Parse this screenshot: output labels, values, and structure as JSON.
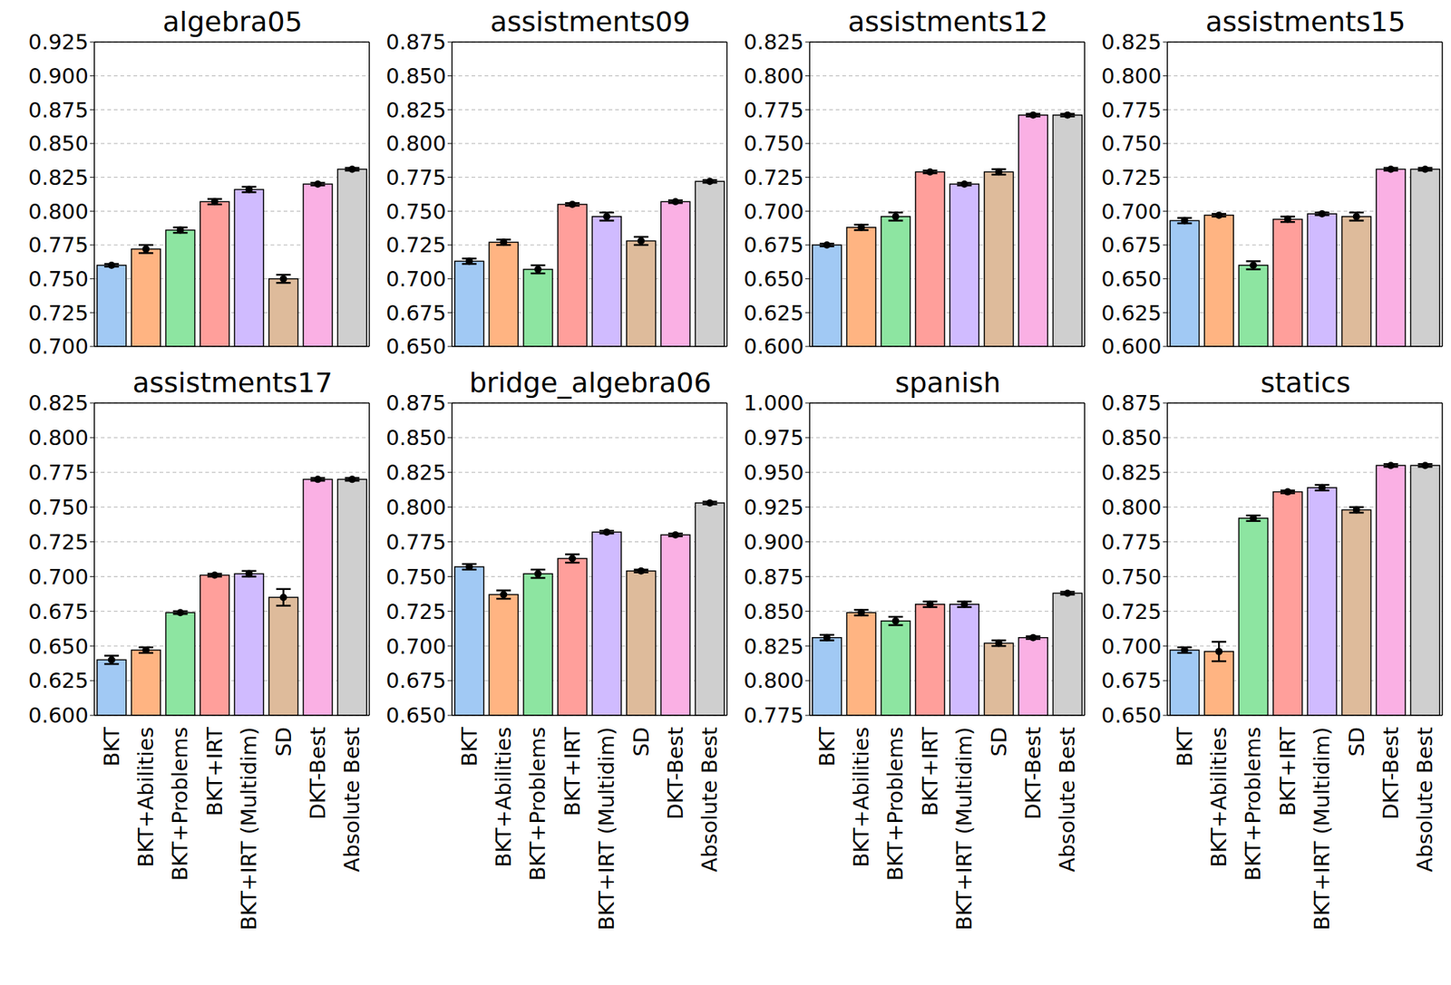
{
  "chart_data": [
    {
      "type": "bar",
      "title": "algebra05",
      "categories": [
        "BKT",
        "BKT+Abilities",
        "BKT+Problems",
        "BKT+IRT",
        "BKT+IRT (Multidim)",
        "SD",
        "DKT-Best",
        "Absolute Best"
      ],
      "values": [
        0.76,
        0.772,
        0.786,
        0.807,
        0.816,
        0.75,
        0.82,
        0.831
      ],
      "errors": [
        0.001,
        0.003,
        0.002,
        0.002,
        0.002,
        0.003,
        0.001,
        0.001
      ],
      "colors": [
        "#a1c9f4",
        "#ffb482",
        "#8de5a1",
        "#ff9f9b",
        "#d0bbff",
        "#debb9b",
        "#fab0e4",
        "#cfcfcf"
      ],
      "ylim": [
        0.7,
        0.925
      ],
      "yticks": [
        {
          "value": 0.7,
          "label": "0.700"
        },
        0.725,
        {
          "value": 0.75,
          "label": "0.750"
        },
        0.775,
        {
          "value": 0.8,
          "label": "0.800"
        },
        0.825,
        {
          "value": 0.85,
          "label": "0.850"
        },
        0.875,
        {
          "value": 0.9,
          "label": "0.900"
        },
        0.925
      ],
      "grid": true,
      "tick_labels": "y"
    },
    {
      "type": "bar",
      "title": "assistments09",
      "categories": [
        "BKT",
        "BKT+Abilities",
        "BKT+Problems",
        "BKT+IRT",
        "BKT+IRT (Multidim)",
        "SD",
        "DKT-Best",
        "Absolute Best"
      ],
      "values": [
        0.713,
        0.727,
        0.707,
        0.755,
        0.746,
        0.728,
        0.757,
        0.772
      ],
      "errors": [
        0.002,
        0.002,
        0.003,
        0.001,
        0.003,
        0.003,
        0.001,
        0.001
      ],
      "colors": [
        "#a1c9f4",
        "#ffb482",
        "#8de5a1",
        "#ff9f9b",
        "#d0bbff",
        "#debb9b",
        "#fab0e4",
        "#cfcfcf"
      ],
      "ylim": [
        0.65,
        0.875
      ],
      "yticks": [
        {
          "value": 0.65,
          "label": "0.650"
        },
        0.675,
        {
          "value": 0.7,
          "label": "0.700"
        },
        0.725,
        {
          "value": 0.75,
          "label": "0.750"
        },
        0.775,
        {
          "value": 0.8,
          "label": "0.800"
        },
        0.825,
        {
          "value": 0.85,
          "label": "0.850"
        },
        0.875
      ],
      "grid": true,
      "tick_labels": "y"
    },
    {
      "type": "bar",
      "title": "assistments12",
      "categories": [
        "BKT",
        "BKT+Abilities",
        "BKT+Problems",
        "BKT+IRT",
        "BKT+IRT (Multidim)",
        "SD",
        "DKT-Best",
        "Absolute Best"
      ],
      "values": [
        0.675,
        0.688,
        0.696,
        0.729,
        0.72,
        0.729,
        0.771,
        0.771
      ],
      "errors": [
        0.001,
        0.002,
        0.003,
        0.001,
        0.001,
        0.002,
        0.001,
        0.001
      ],
      "colors": [
        "#a1c9f4",
        "#ffb482",
        "#8de5a1",
        "#ff9f9b",
        "#d0bbff",
        "#debb9b",
        "#fab0e4",
        "#cfcfcf"
      ],
      "ylim": [
        0.6,
        0.825
      ],
      "yticks": [
        {
          "value": 0.6,
          "label": "0.600"
        },
        0.625,
        {
          "value": 0.65,
          "label": "0.650"
        },
        0.675,
        {
          "value": 0.7,
          "label": "0.700"
        },
        0.725,
        {
          "value": 0.75,
          "label": "0.750"
        },
        0.775,
        {
          "value": 0.8,
          "label": "0.800"
        },
        0.825
      ],
      "grid": true,
      "tick_labels": "y"
    },
    {
      "type": "bar",
      "title": "assistments15",
      "categories": [
        "BKT",
        "BKT+Abilities",
        "BKT+Problems",
        "BKT+IRT",
        "BKT+IRT (Multidim)",
        "SD",
        "DKT-Best",
        "Absolute Best"
      ],
      "values": [
        0.693,
        0.697,
        0.66,
        0.694,
        0.698,
        0.696,
        0.731,
        0.731
      ],
      "errors": [
        0.002,
        0.001,
        0.003,
        0.002,
        0.001,
        0.003,
        0.001,
        0.001
      ],
      "colors": [
        "#a1c9f4",
        "#ffb482",
        "#8de5a1",
        "#ff9f9b",
        "#d0bbff",
        "#debb9b",
        "#fab0e4",
        "#cfcfcf"
      ],
      "ylim": [
        0.6,
        0.825
      ],
      "yticks": [
        {
          "value": 0.6,
          "label": "0.600"
        },
        0.625,
        {
          "value": 0.65,
          "label": "0.650"
        },
        0.675,
        {
          "value": 0.7,
          "label": "0.700"
        },
        0.725,
        {
          "value": 0.75,
          "label": "0.750"
        },
        0.775,
        {
          "value": 0.8,
          "label": "0.800"
        },
        0.825
      ],
      "grid": true,
      "tick_labels": "y"
    },
    {
      "type": "bar",
      "title": "assistments17",
      "categories": [
        "BKT",
        "BKT+Abilities",
        "BKT+Problems",
        "BKT+IRT",
        "BKT+IRT (Multidim)",
        "SD",
        "DKT-Best",
        "Absolute Best"
      ],
      "values": [
        0.64,
        0.647,
        0.674,
        0.701,
        0.702,
        0.685,
        0.77,
        0.77
      ],
      "errors": [
        0.003,
        0.002,
        0.001,
        0.001,
        0.002,
        0.006,
        0.001,
        0.001
      ],
      "colors": [
        "#a1c9f4",
        "#ffb482",
        "#8de5a1",
        "#ff9f9b",
        "#d0bbff",
        "#debb9b",
        "#fab0e4",
        "#cfcfcf"
      ],
      "ylim": [
        0.6,
        0.825
      ],
      "yticks": [
        {
          "value": 0.6,
          "label": "0.600"
        },
        0.625,
        {
          "value": 0.65,
          "label": "0.650"
        },
        0.675,
        {
          "value": 0.7,
          "label": "0.700"
        },
        0.725,
        {
          "value": 0.75,
          "label": "0.750"
        },
        0.775,
        {
          "value": 0.8,
          "label": "0.800"
        },
        0.825
      ],
      "grid": true
    },
    {
      "type": "bar",
      "title": "bridge_algebra06",
      "categories": [
        "BKT",
        "BKT+Abilities",
        "BKT+Problems",
        "BKT+IRT",
        "BKT+IRT (Multidim)",
        "SD",
        "DKT-Best",
        "Absolute Best"
      ],
      "values": [
        0.757,
        0.737,
        0.752,
        0.763,
        0.782,
        0.754,
        0.78,
        0.803
      ],
      "errors": [
        0.002,
        0.003,
        0.003,
        0.003,
        0.001,
        0.001,
        0.001,
        0.001
      ],
      "colors": [
        "#a1c9f4",
        "#ffb482",
        "#8de5a1",
        "#ff9f9b",
        "#d0bbff",
        "#debb9b",
        "#fab0e4",
        "#cfcfcf"
      ],
      "ylim": [
        0.65,
        0.875
      ],
      "yticks": [
        {
          "value": 0.65,
          "label": "0.650"
        },
        0.675,
        {
          "value": 0.7,
          "label": "0.700"
        },
        0.725,
        {
          "value": 0.75,
          "label": "0.750"
        },
        0.775,
        {
          "value": 0.8,
          "label": "0.800"
        },
        0.825,
        {
          "value": 0.85,
          "label": "0.850"
        },
        0.875
      ],
      "grid": true
    },
    {
      "type": "bar",
      "title": "spanish",
      "categories": [
        "BKT",
        "BKT+Abilities",
        "BKT+Problems",
        "BKT+IRT",
        "BKT+IRT (Multidim)",
        "SD",
        "DKT-Best",
        "Absolute Best"
      ],
      "values": [
        0.831,
        0.849,
        0.843,
        0.855,
        0.855,
        0.827,
        0.831,
        0.863
      ],
      "errors": [
        0.002,
        0.002,
        0.003,
        0.002,
        0.002,
        0.002,
        0.001,
        0.001
      ],
      "colors": [
        "#a1c9f4",
        "#ffb482",
        "#8de5a1",
        "#ff9f9b",
        "#d0bbff",
        "#debb9b",
        "#fab0e4",
        "#cfcfcf"
      ],
      "ylim": [
        0.775,
        1.0
      ],
      "yticks": [
        0.775,
        {
          "value": 0.8,
          "label": "0.800"
        },
        0.825,
        {
          "value": 0.85,
          "label": "0.850"
        },
        0.875,
        {
          "value": 0.9,
          "label": "0.900"
        },
        0.925,
        {
          "value": 0.95,
          "label": "0.950"
        },
        0.975,
        {
          "value": 1.0,
          "label": "1.000"
        }
      ],
      "grid": true
    },
    {
      "type": "bar",
      "title": "statics",
      "categories": [
        "BKT",
        "BKT+Abilities",
        "BKT+Problems",
        "BKT+IRT",
        "BKT+IRT (Multidim)",
        "SD",
        "DKT-Best",
        "Absolute Best"
      ],
      "values": [
        0.697,
        0.696,
        0.792,
        0.811,
        0.814,
        0.798,
        0.83,
        0.83
      ],
      "errors": [
        0.002,
        0.007,
        0.002,
        0.001,
        0.002,
        0.002,
        0.001,
        0.001
      ],
      "colors": [
        "#a1c9f4",
        "#ffb482",
        "#8de5a1",
        "#ff9f9b",
        "#d0bbff",
        "#debb9b",
        "#fab0e4",
        "#cfcfcf"
      ],
      "ylim": [
        0.65,
        0.875
      ],
      "yticks": [
        {
          "value": 0.65,
          "label": "0.650"
        },
        0.675,
        {
          "value": 0.7,
          "label": "0.700"
        },
        0.725,
        {
          "value": 0.75,
          "label": "0.750"
        },
        0.775,
        {
          "value": 0.8,
          "label": "0.800"
        },
        0.825,
        {
          "value": 0.85,
          "label": "0.850"
        },
        0.875
      ],
      "grid": true
    }
  ]
}
